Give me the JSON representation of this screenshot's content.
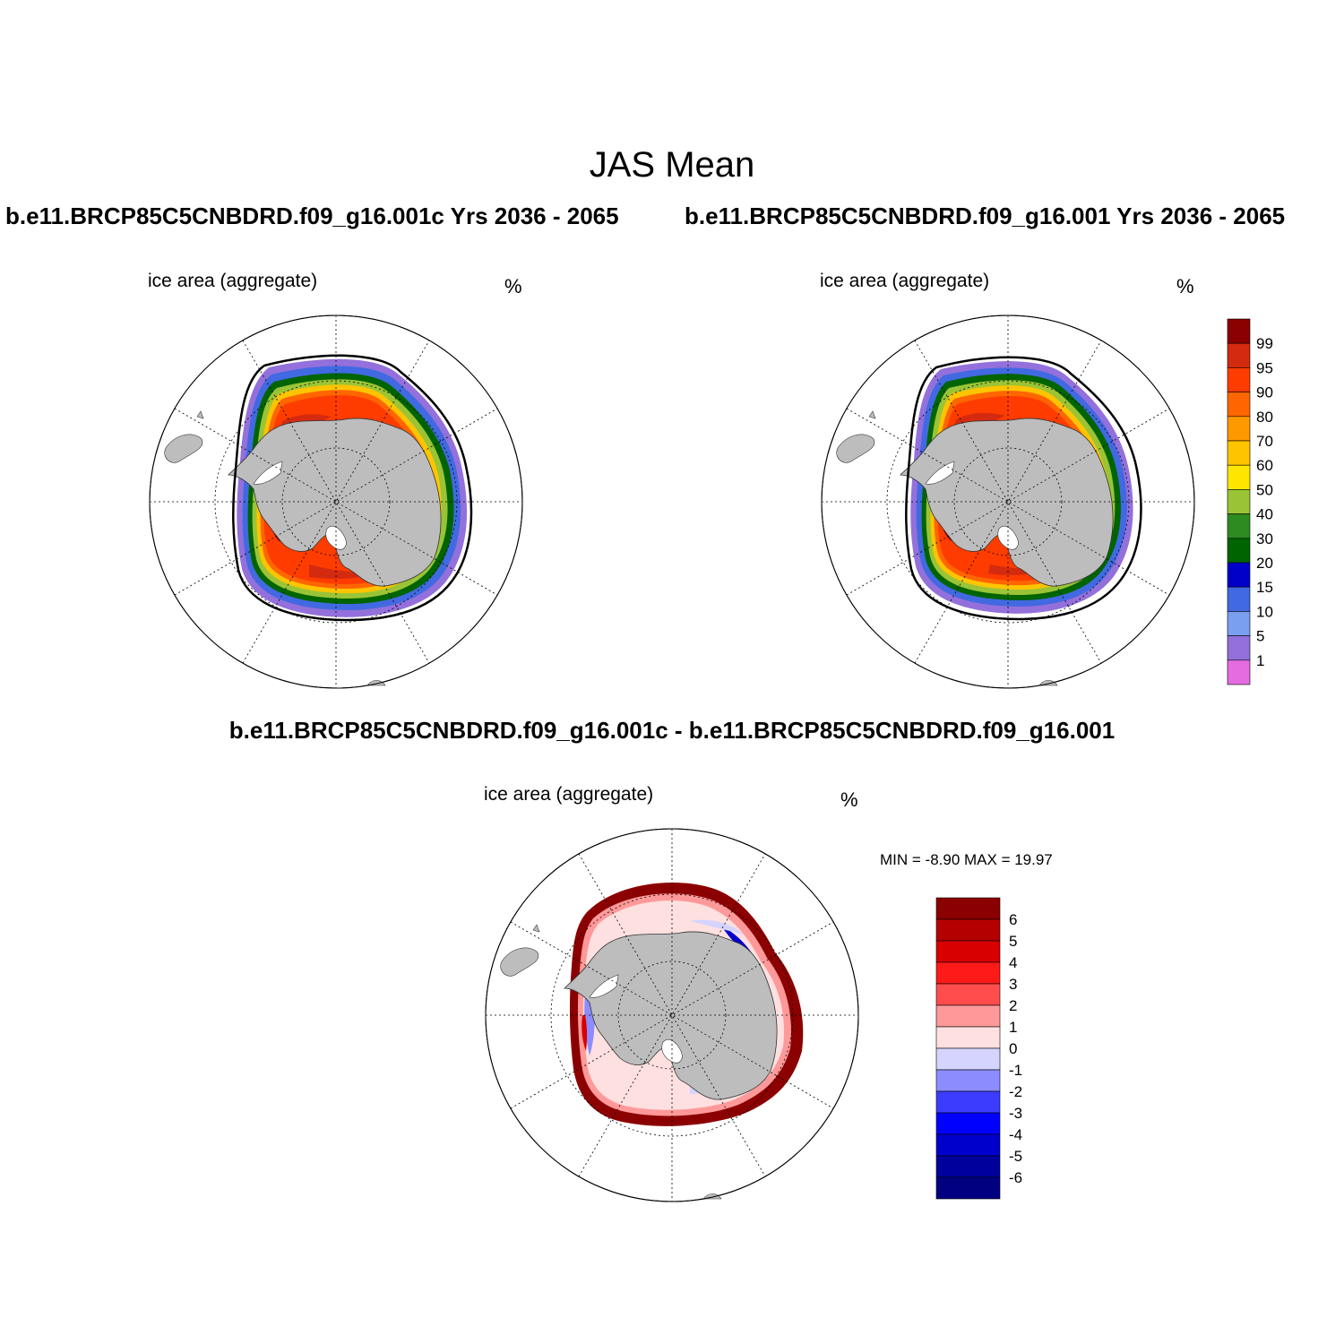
{
  "figure": {
    "title": "JAS Mean",
    "panel_left_title": "b.e11.BRCP85C5CNBDRD.f09_g16.001c  Yrs 2036 - 2065",
    "panel_right_title": "b.e11.BRCP85C5CNBDRD.f09_g16.001  Yrs 2036 - 2065",
    "diff_title": "b.e11.BRCP85C5CNBDRD.f09_g16.001c - b.e11.BRCP85C5CNBDRD.f09_g16.001"
  },
  "panels": {
    "left": {
      "variable": "ice area  (aggregate)",
      "units": "%"
    },
    "right": {
      "variable": "ice area  (aggregate)",
      "units": "%"
    },
    "diff": {
      "variable": "ice area  (aggregate)",
      "units": "%",
      "minmax": "MIN =  -8.90 MAX =  19.97"
    }
  },
  "colorbars": {
    "concentration": {
      "labels": [
        "99",
        "95",
        "90",
        "80",
        "70",
        "60",
        "50",
        "40",
        "30",
        "20",
        "15",
        "10",
        "5",
        "1"
      ],
      "colors": [
        "#8b0000",
        "#d42a10",
        "#ff3c00",
        "#ff6600",
        "#ff9900",
        "#ffc400",
        "#ffe600",
        "#9ac436",
        "#2e8b22",
        "#006400",
        "#0000c8",
        "#4169e1",
        "#7b9ff0",
        "#9370db",
        "#e56be0"
      ]
    },
    "difference": {
      "labels": [
        "6",
        "5",
        "4",
        "3",
        "2",
        "1",
        "0",
        "-1",
        "-2",
        "-3",
        "-4",
        "-5",
        "-6"
      ],
      "colors": [
        "#8b0000",
        "#b40000",
        "#d80000",
        "#ff1a1a",
        "#ff4d4d",
        "#ff9999",
        "#ffe0e0",
        "#d4d4ff",
        "#8c8cff",
        "#3c3cff",
        "#0000ff",
        "#0000cc",
        "#00009c",
        "#000080"
      ]
    }
  },
  "map_colors": {
    "land": "#bdbdbd",
    "ice_shelf": "#ffffff",
    "extent_line": "#000000"
  }
}
